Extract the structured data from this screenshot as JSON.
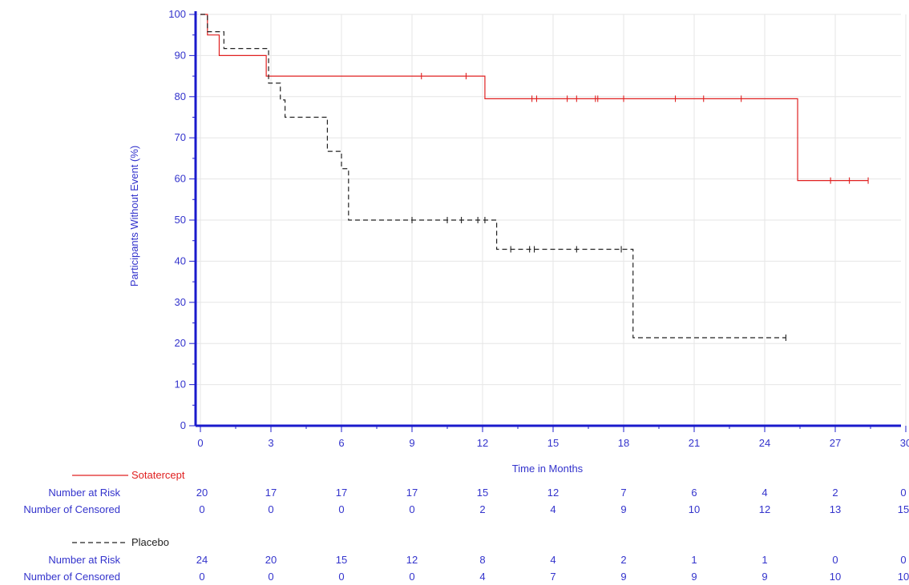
{
  "chart_data": {
    "type": "line",
    "title": "",
    "xlabel": "Time in Months",
    "ylabel": "Participants Without Event (%)",
    "xlim": [
      0,
      30
    ],
    "ylim": [
      0,
      100
    ],
    "x_ticks": [
      "0",
      "3",
      "6",
      "9",
      "12",
      "15",
      "18",
      "21",
      "24",
      "27",
      "30"
    ],
    "y_ticks": [
      "0",
      "10",
      "20",
      "30",
      "40",
      "50",
      "60",
      "70",
      "80",
      "90",
      "100"
    ],
    "grid": true,
    "series": [
      {
        "name": "Sotatercept",
        "color": "#e02020",
        "dash": "solid",
        "steps": [
          [
            0,
            100
          ],
          [
            0.3,
            95
          ],
          [
            0.8,
            90
          ],
          [
            2.8,
            85
          ],
          [
            12.1,
            79.5
          ],
          [
            25.4,
            59.6
          ],
          [
            28.4,
            59.6
          ]
        ],
        "censored": [
          [
            9.4,
            85
          ],
          [
            11.3,
            85
          ],
          [
            14.1,
            79.5
          ],
          [
            14.3,
            79.5
          ],
          [
            15.6,
            79.5
          ],
          [
            16.0,
            79.5
          ],
          [
            16.8,
            79.5
          ],
          [
            16.9,
            79.5
          ],
          [
            18.0,
            79.5
          ],
          [
            20.2,
            79.5
          ],
          [
            21.4,
            79.5
          ],
          [
            23.0,
            79.5
          ],
          [
            26.8,
            59.6
          ],
          [
            27.6,
            59.6
          ],
          [
            28.4,
            59.6
          ]
        ]
      },
      {
        "name": "Placebo",
        "color": "#222222",
        "dash": "dashed",
        "steps": [
          [
            0,
            100
          ],
          [
            0.3,
            95.8
          ],
          [
            1.0,
            91.7
          ],
          [
            2.9,
            83.3
          ],
          [
            3.4,
            79.2
          ],
          [
            3.6,
            75
          ],
          [
            5.4,
            66.7
          ],
          [
            6.0,
            62.5
          ],
          [
            6.3,
            50
          ],
          [
            12.6,
            42.9
          ],
          [
            18.4,
            21.4
          ],
          [
            24.9,
            21.4
          ]
        ],
        "censored": [
          [
            9.0,
            50
          ],
          [
            10.5,
            50
          ],
          [
            11.1,
            50
          ],
          [
            11.8,
            50
          ],
          [
            12.1,
            50
          ],
          [
            13.2,
            42.9
          ],
          [
            14.0,
            42.9
          ],
          [
            14.2,
            42.9
          ],
          [
            16.0,
            42.9
          ],
          [
            17.9,
            42.9
          ],
          [
            24.9,
            21.4
          ]
        ]
      }
    ]
  },
  "risk_table": {
    "groups": [
      {
        "name": "Sotatercept",
        "rows": [
          {
            "label": "Number at Risk",
            "values": [
              "20",
              "17",
              "17",
              "17",
              "15",
              "12",
              "7",
              "6",
              "4",
              "2",
              "0"
            ]
          },
          {
            "label": "Number of Censored",
            "values": [
              "0",
              "0",
              "0",
              "0",
              "2",
              "4",
              "9",
              "10",
              "12",
              "13",
              "15"
            ]
          }
        ]
      },
      {
        "name": "Placebo",
        "rows": [
          {
            "label": "Number at Risk",
            "values": [
              "24",
              "20",
              "15",
              "12",
              "8",
              "4",
              "2",
              "1",
              "1",
              "0",
              "0"
            ]
          },
          {
            "label": "Number of Censored",
            "values": [
              "0",
              "0",
              "0",
              "0",
              "4",
              "7",
              "9",
              "9",
              "9",
              "10",
              "10"
            ]
          }
        ]
      }
    ]
  }
}
